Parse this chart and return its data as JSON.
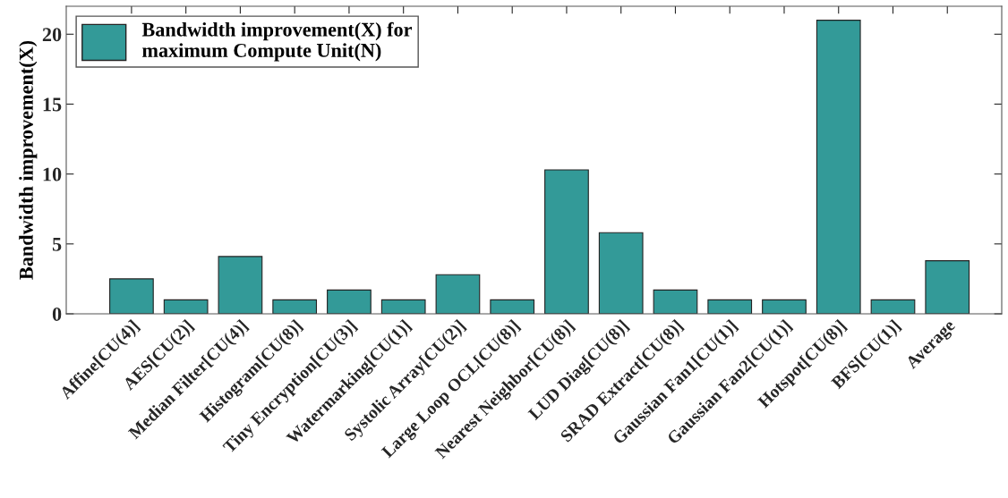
{
  "chart_data": {
    "type": "bar",
    "categories": [
      "Affine[CU(4)]",
      "AES[CU(2)]",
      "Median Filter[CU(4)]",
      "Histogram[CU(8)]",
      "Tiny Encryption[CU(3)]",
      "Watermarking[CU(1)]",
      "Systolic Array[CU(2)]",
      "Large Loop OCL[CU(8)]",
      "Nearest Neighbor[CU(8)]",
      "LUD Diag[CU(8)]",
      "SRAD Extract[CU(8)]",
      "Gaussian Fan1[CU(1)]",
      "Gaussian Fan2[CU(1)]",
      "Hotspot[CU(8)]",
      "BFS[CU(1)]",
      "Average"
    ],
    "series": [
      {
        "name": "Bandwidth improvement(X) for\nmaximum Compute Unit(N)",
        "color": "#339a98",
        "values": [
          2.5,
          1,
          4.1,
          1,
          1.7,
          1,
          2.8,
          1,
          10.3,
          5.8,
          1.7,
          1,
          1,
          21,
          1,
          3.8
        ]
      }
    ],
    "ylabel": "Bandwidth improvement(X)",
    "ylim": [
      0,
      22
    ],
    "yticks": [
      0,
      5,
      10,
      15,
      20
    ],
    "legend": "top left",
    "grid": false
  }
}
